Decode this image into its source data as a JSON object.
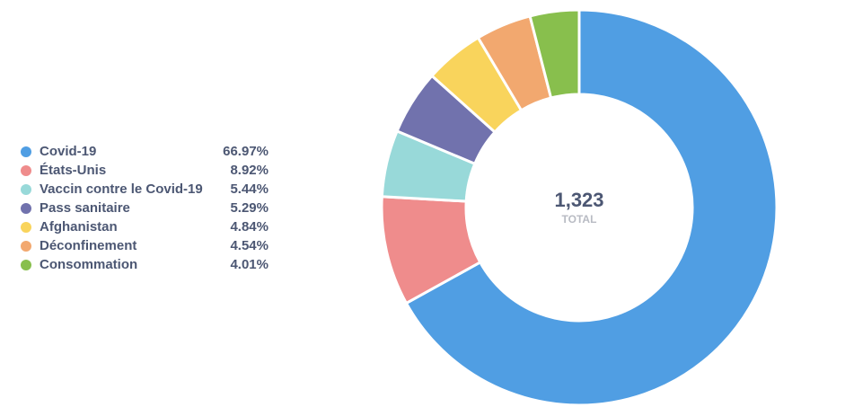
{
  "chart_data": {
    "type": "pie",
    "variant": "donut",
    "categories": [
      "Covid-19",
      "États-Unis",
      "Vaccin contre le Covid-19",
      "Pass sanitaire",
      "Afghanistan",
      "Déconfinement",
      "Consommation"
    ],
    "values": [
      66.97,
      8.92,
      5.44,
      5.29,
      4.84,
      4.54,
      4.01
    ],
    "labels": [
      "66.97%",
      "8.92%",
      "5.44%",
      "5.29%",
      "4.84%",
      "4.54%",
      "4.01%"
    ],
    "colors": [
      "#509EE3",
      "#EF8C8C",
      "#98D9D9",
      "#7172AD",
      "#F9D45C",
      "#F2A86F",
      "#88BF4D"
    ],
    "legend_position": "left",
    "center": {
      "value": "1,323",
      "label": "TOTAL"
    }
  }
}
